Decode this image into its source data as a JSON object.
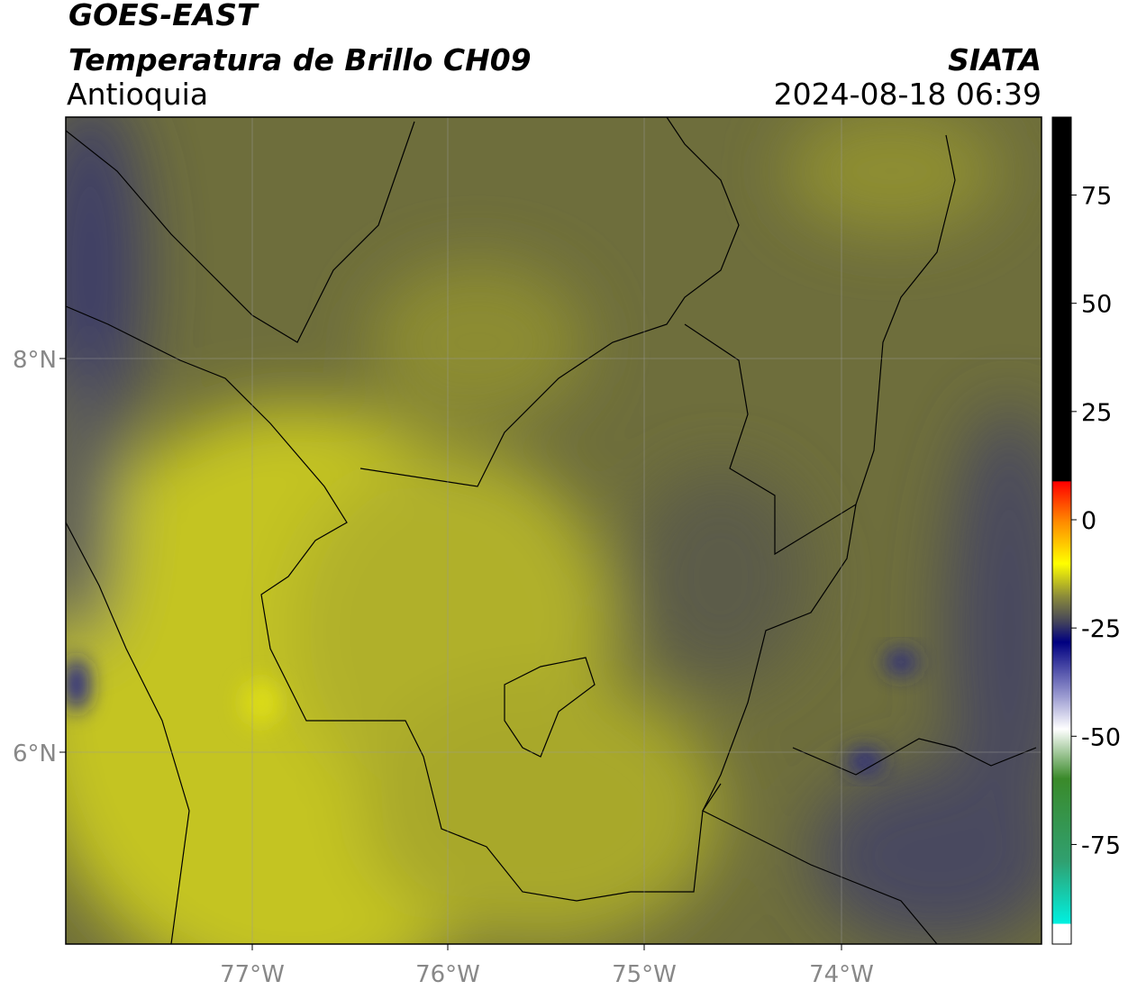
{
  "header": {
    "title": "GOES-EAST",
    "subtitle": "Temperatura de Brillo CH09",
    "region": "Antioquia",
    "source": "SIATA",
    "timestamp": "2024-08-18 06:39"
  },
  "map": {
    "lat_labels": [
      "8°N",
      "6°N"
    ],
    "lon_labels": [
      "77°W",
      "76°W",
      "75°W",
      "74°W"
    ]
  },
  "colorbar": {
    "lim": [
      -98,
      93
    ],
    "ticks": [
      75,
      50,
      25,
      0,
      -25,
      -50,
      -75
    ]
  }
}
